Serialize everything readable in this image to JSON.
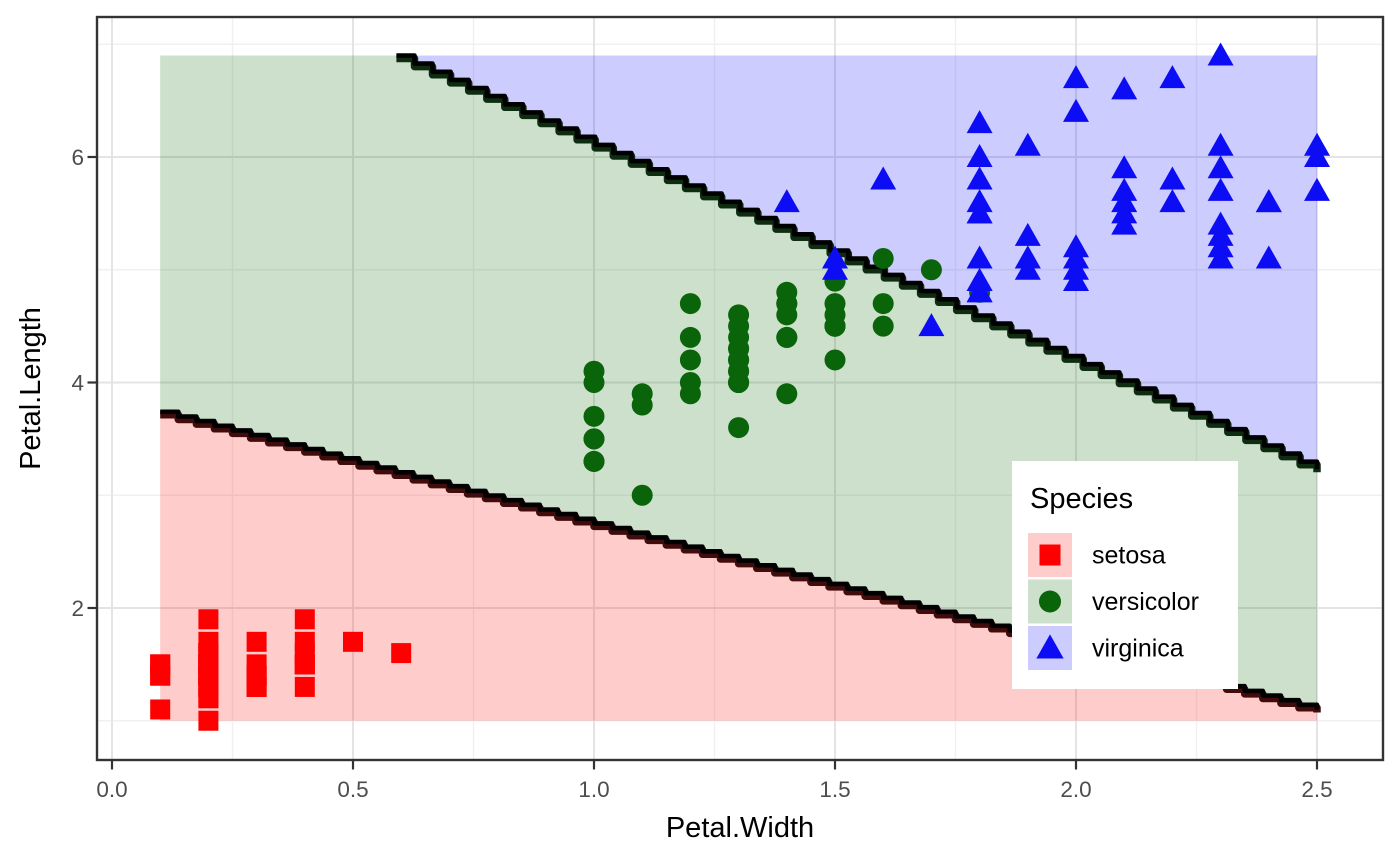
{
  "chart_data": {
    "type": "scatter",
    "title": "",
    "xlabel": "Petal.Width",
    "ylabel": "Petal.Length",
    "xlim": [
      -0.03,
      2.64
    ],
    "ylim": [
      0.65,
      7.24
    ],
    "grid": true,
    "x_major_ticks": [
      {
        "v": 0.0,
        "label": "0.0"
      },
      {
        "v": 0.5,
        "label": "0.5"
      },
      {
        "v": 1.0,
        "label": "1.0"
      },
      {
        "v": 1.5,
        "label": "1.5"
      },
      {
        "v": 2.0,
        "label": "2.0"
      },
      {
        "v": 2.5,
        "label": "2.5"
      }
    ],
    "y_major_ticks": [
      {
        "v": 2,
        "label": "2"
      },
      {
        "v": 4,
        "label": "4"
      },
      {
        "v": 6,
        "label": "6"
      }
    ],
    "x_minor_ticks": [
      0.25,
      0.75,
      1.25,
      1.75,
      2.25
    ],
    "y_minor_ticks": [
      1,
      3,
      5,
      7
    ],
    "region_extent": {
      "x": [
        0.1,
        2.5
      ],
      "y": [
        1.0,
        6.9
      ]
    },
    "decision_boundaries": {
      "lower": {
        "from": [
          0.1,
          3.74
        ],
        "to": [
          2.5,
          1.1
        ]
      },
      "upper": {
        "from": [
          0.59,
          6.9
        ],
        "to": [
          2.5,
          3.23
        ]
      },
      "step_x": 0.0375,
      "line_color": "#000000",
      "line_width": 4.6,
      "lower_shadow_color": "#420C0C",
      "upper_shadow_color": "#0E2D10"
    },
    "series": [
      {
        "name": "setosa",
        "shape": "square",
        "color": "#FF0000",
        "region_fill": "rgba(255,0,0,0.2)",
        "points": [
          [
            0.2,
            1.4
          ],
          [
            0.2,
            1.4
          ],
          [
            0.2,
            1.3
          ],
          [
            0.2,
            1.5
          ],
          [
            0.2,
            1.4
          ],
          [
            0.4,
            1.7
          ],
          [
            0.3,
            1.4
          ],
          [
            0.2,
            1.5
          ],
          [
            0.2,
            1.4
          ],
          [
            0.1,
            1.5
          ],
          [
            0.2,
            1.5
          ],
          [
            0.2,
            1.6
          ],
          [
            0.1,
            1.4
          ],
          [
            0.1,
            1.1
          ],
          [
            0.2,
            1.2
          ],
          [
            0.4,
            1.5
          ],
          [
            0.4,
            1.3
          ],
          [
            0.3,
            1.4
          ],
          [
            0.3,
            1.7
          ],
          [
            0.3,
            1.5
          ],
          [
            0.2,
            1.7
          ],
          [
            0.4,
            1.5
          ],
          [
            0.2,
            1.0
          ],
          [
            0.5,
            1.7
          ],
          [
            0.2,
            1.9
          ],
          [
            0.2,
            1.6
          ],
          [
            0.4,
            1.6
          ],
          [
            0.2,
            1.5
          ],
          [
            0.2,
            1.4
          ],
          [
            0.2,
            1.6
          ],
          [
            0.2,
            1.6
          ],
          [
            0.4,
            1.5
          ],
          [
            0.1,
            1.5
          ],
          [
            0.2,
            1.4
          ],
          [
            0.2,
            1.5
          ],
          [
            0.2,
            1.2
          ],
          [
            0.2,
            1.3
          ],
          [
            0.1,
            1.4
          ],
          [
            0.2,
            1.3
          ],
          [
            0.2,
            1.5
          ],
          [
            0.3,
            1.3
          ],
          [
            0.3,
            1.3
          ],
          [
            0.2,
            1.3
          ],
          [
            0.6,
            1.6
          ],
          [
            0.4,
            1.9
          ],
          [
            0.3,
            1.4
          ],
          [
            0.2,
            1.6
          ],
          [
            0.2,
            1.4
          ],
          [
            0.2,
            1.5
          ],
          [
            0.2,
            1.4
          ]
        ]
      },
      {
        "name": "versicolor",
        "shape": "circle",
        "color": "#0A640A",
        "region_fill": "rgba(0,100,0,0.2)",
        "points": [
          [
            1.4,
            4.7
          ],
          [
            1.5,
            4.5
          ],
          [
            1.5,
            4.9
          ],
          [
            1.3,
            4.0
          ],
          [
            1.5,
            4.6
          ],
          [
            1.3,
            4.5
          ],
          [
            1.6,
            4.7
          ],
          [
            1.0,
            3.3
          ],
          [
            1.3,
            4.6
          ],
          [
            1.4,
            3.9
          ],
          [
            1.0,
            3.5
          ],
          [
            1.5,
            4.2
          ],
          [
            1.0,
            4.0
          ],
          [
            1.4,
            4.7
          ],
          [
            1.3,
            3.6
          ],
          [
            1.4,
            4.4
          ],
          [
            1.5,
            4.5
          ],
          [
            1.0,
            4.1
          ],
          [
            1.5,
            4.5
          ],
          [
            1.1,
            3.9
          ],
          [
            1.8,
            4.8
          ],
          [
            1.3,
            4.0
          ],
          [
            1.5,
            4.9
          ],
          [
            1.2,
            4.7
          ],
          [
            1.3,
            4.3
          ],
          [
            1.4,
            4.4
          ],
          [
            1.4,
            4.8
          ],
          [
            1.7,
            5.0
          ],
          [
            1.5,
            4.5
          ],
          [
            1.0,
            3.5
          ],
          [
            1.1,
            3.8
          ],
          [
            1.0,
            3.7
          ],
          [
            1.2,
            3.9
          ],
          [
            1.6,
            5.1
          ],
          [
            1.5,
            4.5
          ],
          [
            1.6,
            4.5
          ],
          [
            1.5,
            4.7
          ],
          [
            1.3,
            4.4
          ],
          [
            1.3,
            4.1
          ],
          [
            1.3,
            4.0
          ],
          [
            1.2,
            4.4
          ],
          [
            1.4,
            4.6
          ],
          [
            1.2,
            4.0
          ],
          [
            1.0,
            3.3
          ],
          [
            1.3,
            4.2
          ],
          [
            1.2,
            4.2
          ],
          [
            1.3,
            4.2
          ],
          [
            1.3,
            4.3
          ],
          [
            1.1,
            3.0
          ],
          [
            1.3,
            4.1
          ]
        ]
      },
      {
        "name": "virginica",
        "shape": "triangle",
        "color": "#0D0DF5",
        "region_fill": "rgba(0,0,255,0.2)",
        "points": [
          [
            2.5,
            6.0
          ],
          [
            1.9,
            5.1
          ],
          [
            2.1,
            5.9
          ],
          [
            1.8,
            5.6
          ],
          [
            2.2,
            5.8
          ],
          [
            2.1,
            6.6
          ],
          [
            1.7,
            4.5
          ],
          [
            1.8,
            6.3
          ],
          [
            1.8,
            5.8
          ],
          [
            2.5,
            6.1
          ],
          [
            2.0,
            5.1
          ],
          [
            1.9,
            5.3
          ],
          [
            2.1,
            5.5
          ],
          [
            2.0,
            5.0
          ],
          [
            2.4,
            5.1
          ],
          [
            2.3,
            5.3
          ],
          [
            1.8,
            5.5
          ],
          [
            2.2,
            6.7
          ],
          [
            2.3,
            6.9
          ],
          [
            1.5,
            5.0
          ],
          [
            2.3,
            5.7
          ],
          [
            2.0,
            4.9
          ],
          [
            2.0,
            6.7
          ],
          [
            1.8,
            4.9
          ],
          [
            2.1,
            5.7
          ],
          [
            1.8,
            6.0
          ],
          [
            1.8,
            4.8
          ],
          [
            1.8,
            4.9
          ],
          [
            2.1,
            5.6
          ],
          [
            1.6,
            5.8
          ],
          [
            1.9,
            6.1
          ],
          [
            2.0,
            6.4
          ],
          [
            2.2,
            5.6
          ],
          [
            1.5,
            5.1
          ],
          [
            1.4,
            5.6
          ],
          [
            2.3,
            6.1
          ],
          [
            2.4,
            5.6
          ],
          [
            1.8,
            5.5
          ],
          [
            1.8,
            4.8
          ],
          [
            2.1,
            5.4
          ],
          [
            2.4,
            5.6
          ],
          [
            2.3,
            5.1
          ],
          [
            1.9,
            5.1
          ],
          [
            2.3,
            5.9
          ],
          [
            2.5,
            5.7
          ],
          [
            2.3,
            5.2
          ],
          [
            1.9,
            5.0
          ],
          [
            2.0,
            5.2
          ],
          [
            2.3,
            5.4
          ],
          [
            1.8,
            5.1
          ]
        ]
      }
    ],
    "legend": {
      "title": "Species",
      "position": "inside-right",
      "entries": [
        "setosa",
        "versicolor",
        "virginica"
      ]
    }
  },
  "style_colors": {
    "panel_border": "#333333",
    "grid_major": "#E4E4E4",
    "grid_minor": "#F0F0F0",
    "tick_label": "#4D4D4D",
    "axis_title": "#000000",
    "legend_bg": "#FFFFFF",
    "legend_text": "#000000"
  }
}
